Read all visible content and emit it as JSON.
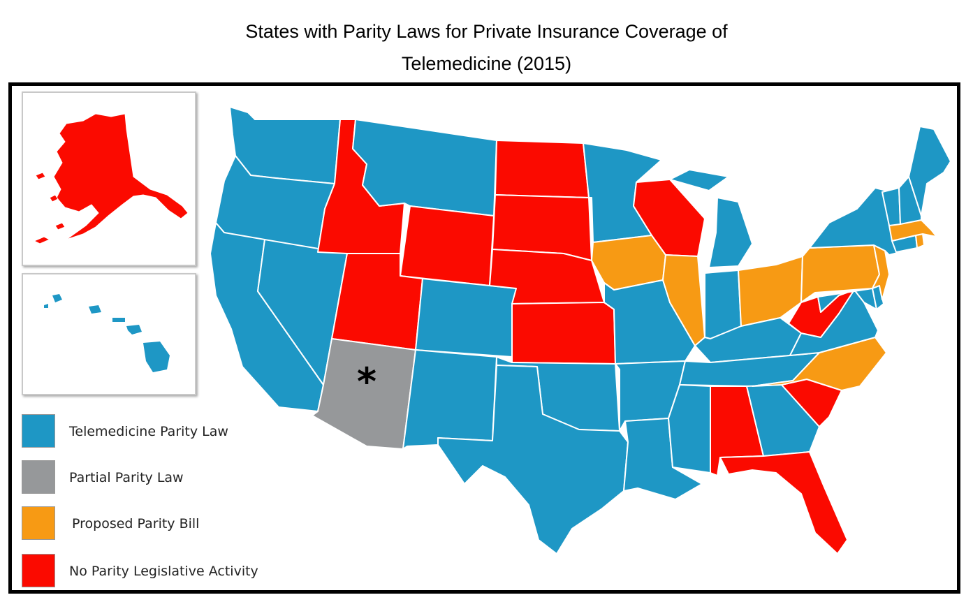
{
  "title": {
    "line1": "States with Parity Laws for Private Insurance Coverage of",
    "line2": "Telemedicine (2015)"
  },
  "colors": {
    "parity_law": "#1e97c5",
    "partial": "#96989a",
    "proposed": "#f79a14",
    "none": "#fb0a00"
  },
  "legend": [
    {
      "label": "Telemedicine Parity Law",
      "color_key": "parity_law"
    },
    {
      "label": "Partial Parity Law",
      "color_key": "partial"
    },
    {
      "label": "Proposed Parity Bill",
      "color_key": "proposed"
    },
    {
      "label": "No Parity Legislative Activity",
      "color_key": "none"
    }
  ],
  "annotation": {
    "arizona_marker": "*"
  },
  "states": {
    "WA": "parity_law",
    "OR": "parity_law",
    "CA": "parity_law",
    "NV": "parity_law",
    "ID": "none",
    "MT": "parity_law",
    "WY": "none",
    "UT": "none",
    "AZ": "partial",
    "CO": "parity_law",
    "NM": "parity_law",
    "ND": "none",
    "SD": "none",
    "NE": "none",
    "KS": "none",
    "OK": "parity_law",
    "TX": "parity_law",
    "MN": "parity_law",
    "IA": "proposed",
    "MO": "parity_law",
    "AR": "parity_law",
    "LA": "parity_law",
    "WI": "none",
    "IL": "proposed",
    "MI": "parity_law",
    "IN": "parity_law",
    "OH": "proposed",
    "KY": "parity_law",
    "TN": "parity_law",
    "MS": "parity_law",
    "AL": "none",
    "GA": "parity_law",
    "FL": "none",
    "SC": "none",
    "NC": "proposed",
    "VA": "parity_law",
    "WV": "none",
    "PA": "proposed",
    "NY": "parity_law",
    "NJ": "proposed",
    "DE": "parity_law",
    "MD": "parity_law",
    "VT": "parity_law",
    "NH": "parity_law",
    "ME": "parity_law",
    "MA": "proposed",
    "CT": "parity_law",
    "RI": "proposed",
    "AK": "none",
    "HI": "parity_law"
  }
}
